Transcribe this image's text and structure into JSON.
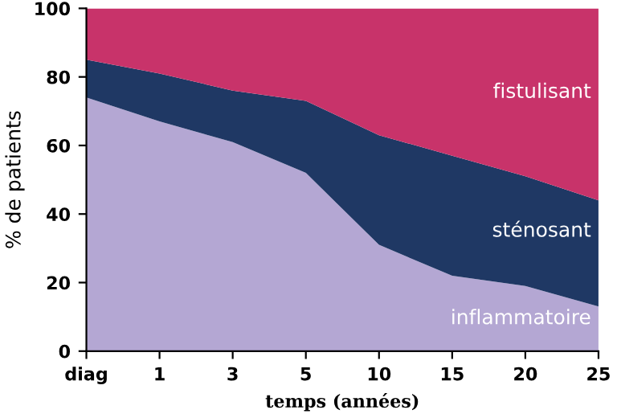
{
  "chart_data": {
    "type": "area",
    "stacked": true,
    "xlabel": "temps (années)",
    "ylabel": "% de patients",
    "categories": [
      "diag",
      "1",
      "3",
      "5",
      "10",
      "15",
      "20",
      "25"
    ],
    "ylim": [
      0,
      100
    ],
    "yticks": [
      0,
      20,
      40,
      60,
      80,
      100
    ],
    "grid": false,
    "legend": false,
    "series": [
      {
        "name": "inflammatoire",
        "color": "#b4a7d3",
        "values": [
          74,
          67,
          61,
          52,
          31,
          22,
          19,
          13
        ]
      },
      {
        "name": "sténosant",
        "color": "#1f3864",
        "values": [
          11,
          14,
          15,
          21,
          32,
          35,
          32,
          31
        ]
      },
      {
        "name": "fistulisant",
        "color": "#c8336a",
        "values": [
          15,
          19,
          24,
          27,
          37,
          43,
          49,
          56
        ]
      }
    ]
  }
}
